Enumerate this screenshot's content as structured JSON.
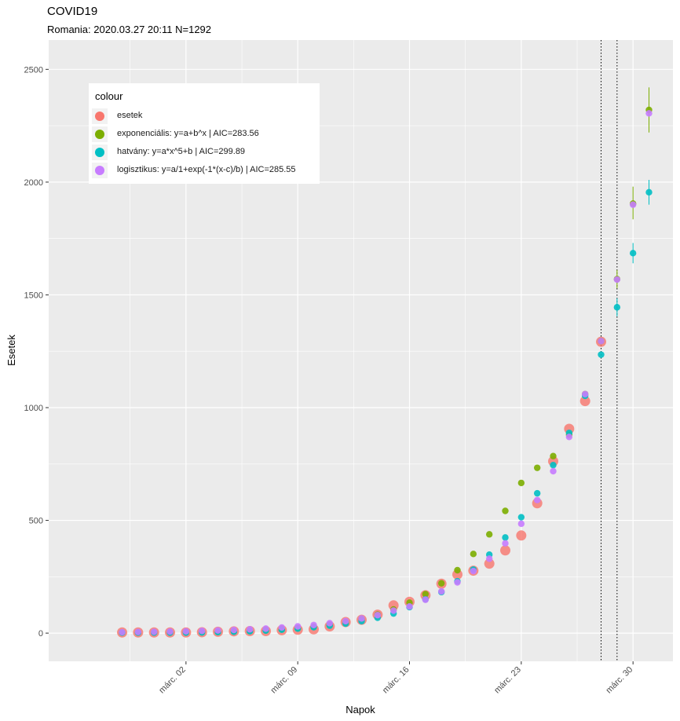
{
  "chart_data": {
    "type": "scatter",
    "title": "COVID19",
    "subtitle": "Romania: 2020.03.27 20:11 N=1292",
    "xlabel": "Napok",
    "ylabel": "Esetek",
    "x_tick_labels": [
      {
        "label": "márc. 02",
        "day": 2
      },
      {
        "label": "márc. 09",
        "day": 9
      },
      {
        "label": "márc. 16",
        "day": 16
      },
      {
        "label": "márc. 23",
        "day": 23
      },
      {
        "label": "márc. 30",
        "day": 30
      }
    ],
    "xlim": [
      -6.6,
      32.5
    ],
    "y_ticks": [
      0,
      500,
      1000,
      1500,
      2000,
      2500
    ],
    "ylim": [
      -125,
      2630
    ],
    "vlines": [
      28,
      29
    ],
    "legend": {
      "title": "colour",
      "items": [
        {
          "label": "esetek",
          "color": "#F8766D"
        },
        {
          "label": "exponenciális: y=a+b^x | AIC=283.56",
          "color": "#7CAE00"
        },
        {
          "label": "hatvány: y=a*x^5+b | AIC=299.89",
          "color": "#00BFC4"
        },
        {
          "label": "logisztikus: y=a/1+exp(-1*(x-c)/b) | AIC=285.55",
          "color": "#C77CFF"
        }
      ]
    },
    "series": [
      {
        "name": "esetek",
        "color": "#F8766D",
        "points": [
          {
            "x": -2,
            "y": 3
          },
          {
            "x": -1,
            "y": 3
          },
          {
            "x": 0,
            "y": 3
          },
          {
            "x": 1,
            "y": 3
          },
          {
            "x": 2,
            "y": 3
          },
          {
            "x": 3,
            "y": 4
          },
          {
            "x": 4,
            "y": 6
          },
          {
            "x": 5,
            "y": 8
          },
          {
            "x": 6,
            "y": 9
          },
          {
            "x": 7,
            "y": 9
          },
          {
            "x": 8,
            "y": 13
          },
          {
            "x": 9,
            "y": 15
          },
          {
            "x": 10,
            "y": 17
          },
          {
            "x": 11,
            "y": 30
          },
          {
            "x": 12,
            "y": 49
          },
          {
            "x": 13,
            "y": 59
          },
          {
            "x": 14,
            "y": 82
          },
          {
            "x": 15,
            "y": 123
          },
          {
            "x": 16,
            "y": 139
          },
          {
            "x": 17,
            "y": 168
          },
          {
            "x": 18,
            "y": 219
          },
          {
            "x": 19,
            "y": 260
          },
          {
            "x": 20,
            "y": 277
          },
          {
            "x": 21,
            "y": 308
          },
          {
            "x": 22,
            "y": 367
          },
          {
            "x": 23,
            "y": 433
          },
          {
            "x": 24,
            "y": 576
          },
          {
            "x": 25,
            "y": 762
          },
          {
            "x": 26,
            "y": 906
          },
          {
            "x": 27,
            "y": 1029
          },
          {
            "x": 28,
            "y": 1292
          }
        ]
      },
      {
        "name": "exponenciális: y=a+b^x | AIC=283.56",
        "color": "#7CAE00",
        "points": [
          {
            "x": -2,
            "y": 3
          },
          {
            "x": -1,
            "y": 3
          },
          {
            "x": 0,
            "y": 4
          },
          {
            "x": 1,
            "y": 4
          },
          {
            "x": 2,
            "y": 5
          },
          {
            "x": 3,
            "y": 5
          },
          {
            "x": 4,
            "y": 6
          },
          {
            "x": 5,
            "y": 8
          },
          {
            "x": 6,
            "y": 10
          },
          {
            "x": 7,
            "y": 13
          },
          {
            "x": 8,
            "y": 17
          },
          {
            "x": 9,
            "y": 22
          },
          {
            "x": 10,
            "y": 29
          },
          {
            "x": 11,
            "y": 38
          },
          {
            "x": 12,
            "y": 49
          },
          {
            "x": 13,
            "y": 63
          },
          {
            "x": 14,
            "y": 82
          },
          {
            "x": 15,
            "y": 105
          },
          {
            "x": 16,
            "y": 135
          },
          {
            "x": 17,
            "y": 173
          },
          {
            "x": 18,
            "y": 221
          },
          {
            "x": 19,
            "y": 279
          },
          {
            "x": 20,
            "y": 351
          },
          {
            "x": 21,
            "y": 438
          },
          {
            "x": 22,
            "y": 542
          },
          {
            "x": 23,
            "y": 666
          },
          {
            "x": 24,
            "y": 733
          },
          {
            "x": 25,
            "y": 785
          },
          {
            "x": 26,
            "y": 880
          },
          {
            "x": 27,
            "y": 1060
          },
          {
            "x": 28,
            "y": 1295
          },
          {
            "x": 29,
            "y": 1570,
            "lo": 1530,
            "hi": 1610
          },
          {
            "x": 30,
            "y": 1905,
            "lo": 1835,
            "hi": 1980
          },
          {
            "x": 31,
            "y": 2320,
            "lo": 2220,
            "hi": 2420
          }
        ]
      },
      {
        "name": "hatvány: y=a*x^5+b | AIC=299.89",
        "color": "#00BFC4",
        "points": [
          {
            "x": -2,
            "y": 2
          },
          {
            "x": -1,
            "y": 2
          },
          {
            "x": 0,
            "y": 2
          },
          {
            "x": 1,
            "y": 2
          },
          {
            "x": 2,
            "y": 2
          },
          {
            "x": 3,
            "y": 3
          },
          {
            "x": 4,
            "y": 4
          },
          {
            "x": 5,
            "y": 6
          },
          {
            "x": 6,
            "y": 8
          },
          {
            "x": 7,
            "y": 11
          },
          {
            "x": 8,
            "y": 15
          },
          {
            "x": 9,
            "y": 20
          },
          {
            "x": 10,
            "y": 26
          },
          {
            "x": 11,
            "y": 33
          },
          {
            "x": 12,
            "y": 42
          },
          {
            "x": 13,
            "y": 53
          },
          {
            "x": 14,
            "y": 68
          },
          {
            "x": 15,
            "y": 87
          },
          {
            "x": 16,
            "y": 115
          },
          {
            "x": 17,
            "y": 150
          },
          {
            "x": 18,
            "y": 182
          },
          {
            "x": 19,
            "y": 230
          },
          {
            "x": 20,
            "y": 282
          },
          {
            "x": 21,
            "y": 348
          },
          {
            "x": 22,
            "y": 424
          },
          {
            "x": 23,
            "y": 514
          },
          {
            "x": 24,
            "y": 620
          },
          {
            "x": 25,
            "y": 745
          },
          {
            "x": 26,
            "y": 888
          },
          {
            "x": 27,
            "y": 1052
          },
          {
            "x": 28,
            "y": 1235
          },
          {
            "x": 29,
            "y": 1445,
            "lo": 1405,
            "hi": 1485
          },
          {
            "x": 30,
            "y": 1685,
            "lo": 1640,
            "hi": 1730
          },
          {
            "x": 31,
            "y": 1955,
            "lo": 1900,
            "hi": 2010
          }
        ]
      },
      {
        "name": "logisztikus: y=a/1+exp(-1*(x-c)/b) | AIC=285.55",
        "color": "#C77CFF",
        "points": [
          {
            "x": -2,
            "y": 4
          },
          {
            "x": -1,
            "y": 5
          },
          {
            "x": 0,
            "y": 6
          },
          {
            "x": 1,
            "y": 7
          },
          {
            "x": 2,
            "y": 8
          },
          {
            "x": 3,
            "y": 10
          },
          {
            "x": 4,
            "y": 12
          },
          {
            "x": 5,
            "y": 14
          },
          {
            "x": 6,
            "y": 17
          },
          {
            "x": 7,
            "y": 20
          },
          {
            "x": 8,
            "y": 25
          },
          {
            "x": 9,
            "y": 30
          },
          {
            "x": 10,
            "y": 36
          },
          {
            "x": 11,
            "y": 44
          },
          {
            "x": 12,
            "y": 53
          },
          {
            "x": 13,
            "y": 65
          },
          {
            "x": 14,
            "y": 80
          },
          {
            "x": 15,
            "y": 100
          },
          {
            "x": 16,
            "y": 118
          },
          {
            "x": 17,
            "y": 148
          },
          {
            "x": 18,
            "y": 185
          },
          {
            "x": 19,
            "y": 225
          },
          {
            "x": 20,
            "y": 275
          },
          {
            "x": 21,
            "y": 330
          },
          {
            "x": 22,
            "y": 398
          },
          {
            "x": 23,
            "y": 485
          },
          {
            "x": 24,
            "y": 590
          },
          {
            "x": 25,
            "y": 718
          },
          {
            "x": 26,
            "y": 870
          },
          {
            "x": 27,
            "y": 1060
          },
          {
            "x": 28,
            "y": 1295
          },
          {
            "x": 29,
            "y": 1568
          },
          {
            "x": 30,
            "y": 1900
          },
          {
            "x": 31,
            "y": 2305
          }
        ]
      }
    ]
  }
}
